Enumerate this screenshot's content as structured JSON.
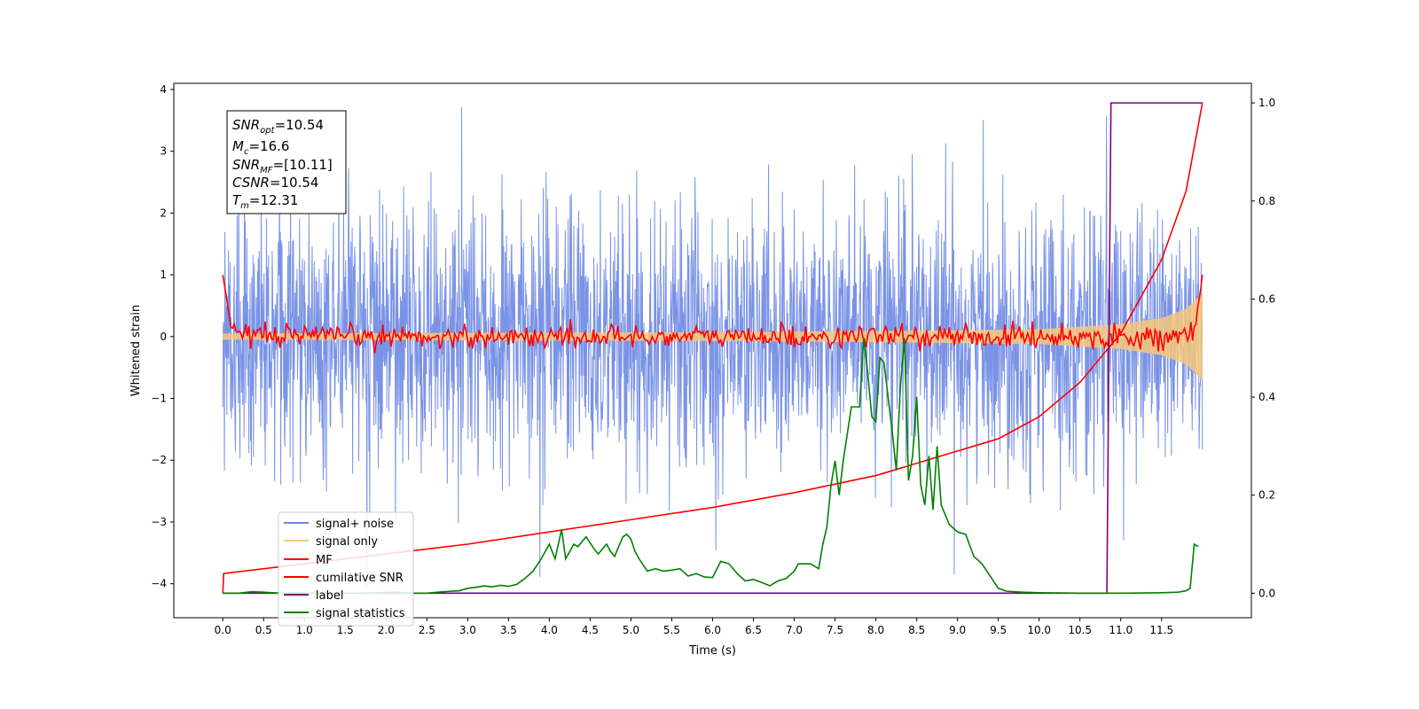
{
  "chart_data": {
    "type": "line",
    "xlabel": "Time (s)",
    "ylabel": "Whitened strain",
    "xlim": [
      -0.6,
      12.6
    ],
    "ylim": [
      -4.55,
      4.1
    ],
    "y2lim": [
      -0.05,
      1.04
    ],
    "xticks": [
      "0.0",
      "0.5",
      "1.0",
      "1.5",
      "2.0",
      "2.5",
      "3.0",
      "3.5",
      "4.0",
      "4.5",
      "5.0",
      "5.5",
      "6.0",
      "6.5",
      "7.0",
      "7.5",
      "8.0",
      "8.5",
      "9.0",
      "9.5",
      "10.0",
      "10.5",
      "11.0",
      "11.5"
    ],
    "yticks": [
      "4",
      "3",
      "2",
      "1",
      "0",
      "−1",
      "−2",
      "−3",
      "−4"
    ],
    "y2ticks": [
      "1.0",
      "0.8",
      "0.6",
      "0.4",
      "0.2",
      "0.0"
    ],
    "annotation": {
      "snr_opt": {
        "sym": "SNR",
        "sub": "opt",
        "value": "=10.54"
      },
      "mc": {
        "sym": "M",
        "sub": "c",
        "value": "=16.6"
      },
      "snr_mf": {
        "sym": "SNR",
        "sub": "MF",
        "value": "=[10.11]"
      },
      "csnr": {
        "sym": "CSNR",
        "sub": "",
        "value": "=10.54"
      },
      "tm": {
        "sym": "T",
        "sub": "m",
        "value": "=12.31"
      }
    },
    "legend": {
      "position": "lower-left",
      "entries": [
        {
          "label": "signal+ noise",
          "color": "#6c87e3"
        },
        {
          "label": "signal only",
          "color": "#f7c77a"
        },
        {
          "label": "MF",
          "color": "#ff0000"
        },
        {
          "label": "cumilative SNR",
          "color": "#ff0000"
        },
        {
          "label": "label",
          "color": "#800080"
        },
        {
          "label": "signal statistics",
          "color": "#008000"
        }
      ]
    },
    "series": [
      {
        "name": "signal+ noise",
        "axis": "left",
        "color": "#6c87e3",
        "kind": "noise",
        "x_range": [
          0.0,
          12.0
        ],
        "approx_std": 1.05,
        "approx_y_range": [
          -4.1,
          3.75
        ]
      },
      {
        "name": "signal only",
        "axis": "left",
        "color": "#f7c77a",
        "kind": "chirp",
        "x_range": [
          0.0,
          12.0
        ],
        "amplitude_envelope": {
          "x": [
            0,
            6,
            8,
            10,
            11,
            11.5,
            11.8,
            12.0
          ],
          "y": [
            0.05,
            0.07,
            0.09,
            0.12,
            0.2,
            0.3,
            0.45,
            0.7
          ]
        }
      },
      {
        "name": "MF",
        "axis": "left",
        "color": "#ff0000",
        "kind": "filter-output",
        "x_range": [
          0.0,
          12.0
        ],
        "start_value": 1.0,
        "end_value": 1.0,
        "baseline": 0.0,
        "wiggle_amplitude": 0.15
      },
      {
        "name": "cumilative SNR",
        "axis": "right",
        "color": "#ff0000",
        "x": [
          0.0,
          0.01,
          1,
          2,
          3,
          4,
          5,
          6,
          7,
          8,
          9,
          9.5,
          10,
          10.5,
          11,
          11.5,
          11.8,
          12.0
        ],
        "y": [
          0.0,
          0.04,
          0.06,
          0.08,
          0.1,
          0.125,
          0.15,
          0.175,
          0.205,
          0.24,
          0.29,
          0.315,
          0.36,
          0.43,
          0.53,
          0.68,
          0.82,
          1.0
        ]
      },
      {
        "name": "label",
        "axis": "right",
        "color": "#800080",
        "x": [
          0.0,
          10.83,
          10.88,
          12.0
        ],
        "y": [
          0.0,
          0.0,
          1.0,
          1.0
        ]
      },
      {
        "name": "signal statistics",
        "axis": "right",
        "color": "#008000",
        "x": [
          0.0,
          0.2,
          0.35,
          0.5,
          0.7,
          0.9,
          1.1,
          1.3,
          1.5,
          1.7,
          1.9,
          2.1,
          2.3,
          2.5,
          2.7,
          2.9,
          3.0,
          3.1,
          3.2,
          3.3,
          3.4,
          3.5,
          3.6,
          3.7,
          3.8,
          3.9,
          4.0,
          4.07,
          4.15,
          4.2,
          4.3,
          4.35,
          4.45,
          4.55,
          4.6,
          4.65,
          4.7,
          4.75,
          4.8,
          4.9,
          4.95,
          5.0,
          5.05,
          5.1,
          5.2,
          5.3,
          5.4,
          5.5,
          5.6,
          5.7,
          5.8,
          5.9,
          6.0,
          6.1,
          6.2,
          6.3,
          6.4,
          6.5,
          6.6,
          6.7,
          6.8,
          6.9,
          7.0,
          7.05,
          7.1,
          7.2,
          7.3,
          7.35,
          7.4,
          7.45,
          7.5,
          7.55,
          7.6,
          7.7,
          7.8,
          7.85,
          7.9,
          7.95,
          8.0,
          8.05,
          8.1,
          8.2,
          8.25,
          8.3,
          8.35,
          8.4,
          8.45,
          8.5,
          8.55,
          8.6,
          8.65,
          8.7,
          8.75,
          8.8,
          8.9,
          9.0,
          9.1,
          9.2,
          9.3,
          9.4,
          9.5,
          9.6,
          9.8,
          10.0,
          10.5,
          11.0,
          11.5,
          11.7,
          11.8,
          11.85,
          11.9,
          11.95
        ],
        "y": [
          0.0,
          0.0,
          0.003,
          0.002,
          0.0,
          0.001,
          0.0,
          0.0,
          0.0,
          0.0,
          0.001,
          0.002,
          0.0,
          0.0,
          0.003,
          0.005,
          0.01,
          0.012,
          0.015,
          0.013,
          0.016,
          0.014,
          0.018,
          0.03,
          0.045,
          0.07,
          0.1,
          0.07,
          0.13,
          0.07,
          0.1,
          0.095,
          0.115,
          0.09,
          0.08,
          0.09,
          0.1,
          0.085,
          0.075,
          0.115,
          0.12,
          0.11,
          0.085,
          0.07,
          0.045,
          0.05,
          0.045,
          0.047,
          0.05,
          0.035,
          0.04,
          0.033,
          0.032,
          0.065,
          0.06,
          0.04,
          0.025,
          0.028,
          0.022,
          0.015,
          0.025,
          0.03,
          0.045,
          0.06,
          0.06,
          0.06,
          0.05,
          0.1,
          0.135,
          0.22,
          0.27,
          0.2,
          0.27,
          0.38,
          0.38,
          0.52,
          0.45,
          0.36,
          0.35,
          0.48,
          0.47,
          0.33,
          0.25,
          0.42,
          0.52,
          0.23,
          0.28,
          0.4,
          0.22,
          0.18,
          0.28,
          0.17,
          0.3,
          0.18,
          0.14,
          0.125,
          0.12,
          0.075,
          0.06,
          0.035,
          0.01,
          0.004,
          0.002,
          0.001,
          0.0,
          0.0,
          0.001,
          0.002,
          0.005,
          0.01,
          0.1,
          0.095
        ]
      }
    ]
  }
}
